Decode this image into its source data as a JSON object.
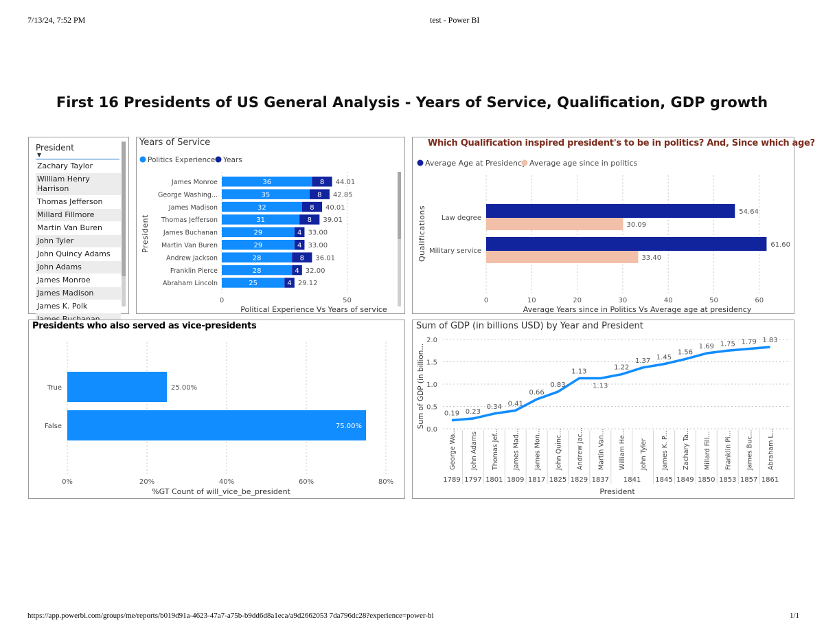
{
  "print_header": {
    "datetime": "7/13/24, 7:52 PM",
    "page_title": "test - Power BI"
  },
  "print_footer": {
    "url": "https://app.powerbi.com/groups/me/reports/b019d91a-4623-47a7-a75b-b9dd6d8a1eca/a9d2662053 7da796dc28?experience=power-bi",
    "page": "1/1"
  },
  "report_title": "First 16 Presidents of US General Analysis - Years of Service, Qualification, GDP growth",
  "slicer": {
    "header": "President",
    "items": [
      "Zachary Taylor",
      "William Henry Harrison",
      "Thomas Jefferson",
      "Millard Fillmore",
      "Martin Van Buren",
      "John Tyler",
      "John Quincy Adams",
      "John Adams",
      "James Monroe",
      "James Madison",
      "James K. Polk",
      "James Buchanan"
    ]
  },
  "colors": {
    "accent": "#118dff",
    "dark": "#12239e",
    "peach": "#f2c0a8",
    "title_brown": "#7b2d1e",
    "grid": "#c8c8c8"
  },
  "chart_data": [
    {
      "type": "bar",
      "orientation": "horizontal",
      "stacked": true,
      "title": "Years of Service",
      "xlabel": "Political Experience Vs Years of service",
      "ylabel": "President",
      "legend_position": "top-left",
      "grid": true,
      "categories": [
        "James Monroe",
        "George Washing...",
        "James Madison",
        "Thomas Jefferson",
        "James Buchanan",
        "Martin Van Buren",
        "Andrew Jackson",
        "Franklin Pierce",
        "Abraham Lincoln"
      ],
      "series": [
        {
          "name": "Politics Experience",
          "color": "#118dff",
          "values": [
            36,
            35,
            32,
            31,
            29,
            29,
            28,
            28,
            25
          ]
        },
        {
          "name": "Years",
          "color": "#12239e",
          "values": [
            8,
            8,
            8,
            8,
            4,
            4,
            8,
            4,
            4
          ]
        }
      ],
      "total_labels": [
        "44.01",
        "42.85",
        "40.01",
        "39.01",
        "33.00",
        "33.00",
        "36.01",
        "32.00",
        "29.12"
      ],
      "xlim": [
        0,
        60
      ],
      "xticks": [
        "0",
        "50"
      ]
    },
    {
      "type": "bar",
      "orientation": "horizontal",
      "title": "Which Qualification inspired president's to be in politics? And, Since which age?",
      "xlabel": "Average Years since in Politics Vs Average age at presidency",
      "ylabel": "Qualifications",
      "legend_position": "top-left",
      "grid": true,
      "categories": [
        "Law degree",
        "Military service"
      ],
      "series": [
        {
          "name": "Average Age at Presidency",
          "color": "#12239e",
          "values": [
            54.64,
            61.6
          ],
          "labels": [
            "54.64",
            "61.60"
          ]
        },
        {
          "name": "Average age since in politics",
          "color": "#f2c0a8",
          "values": [
            30.09,
            33.4
          ],
          "labels": [
            "30.09",
            "33.40"
          ]
        }
      ],
      "xlim": [
        0,
        62
      ],
      "xticks": [
        "0",
        "10",
        "20",
        "30",
        "40",
        "50",
        "60"
      ]
    },
    {
      "type": "bar",
      "orientation": "horizontal",
      "title": "Presidents who also served as vice-presidents",
      "xlabel": "%GT Count of will_vice_be_president",
      "grid": true,
      "categories": [
        "True",
        "False"
      ],
      "values": [
        25,
        75
      ],
      "labels": [
        "25.00%",
        "75.00%"
      ],
      "color": "#118dff",
      "xlim": [
        0,
        80
      ],
      "xticks": [
        "0%",
        "20%",
        "40%",
        "60%",
        "80%"
      ]
    },
    {
      "type": "line",
      "title": "Sum of GDP (in billions USD) by Year and President",
      "xlabel": "President",
      "ylabel": "Sum of GDP (in billion...",
      "grid": true,
      "color": "#118dff",
      "presidents": [
        "George Wa...",
        "John Adams",
        "Thomas Jef...",
        "James Mad...",
        "James Mon...",
        "John Quinc...",
        "Andrew Jac...",
        "Martin Van...",
        "William He...",
        "John Tyler",
        "James K. P...",
        "Zachary Ta...",
        "Millard Fill...",
        "Franklin Pi...",
        "James Buc...",
        "Abraham L..."
      ],
      "years": [
        "1789",
        "1797",
        "1801",
        "1809",
        "1817",
        "1825",
        "1829",
        "1837",
        "1841",
        "1845",
        "1849",
        "1850",
        "1853",
        "1857",
        "1861"
      ],
      "values": [
        0.19,
        0.23,
        0.34,
        0.41,
        0.66,
        0.83,
        1.13,
        1.13,
        1.22,
        1.37,
        1.45,
        1.56,
        1.69,
        1.75,
        1.79,
        1.83
      ],
      "labels": [
        "0.19",
        "0.23",
        "0.34",
        "0.41",
        "0.66",
        "0.83",
        "1.13",
        "1.13",
        "1.22",
        "1.37",
        "1.45",
        "1.56",
        "1.69",
        "1.75",
        "1.79",
        "1.83"
      ],
      "ylim": [
        0,
        2
      ],
      "yticks": [
        "0.0",
        "0.5",
        "1.0",
        "1.5",
        "2.0"
      ]
    }
  ]
}
